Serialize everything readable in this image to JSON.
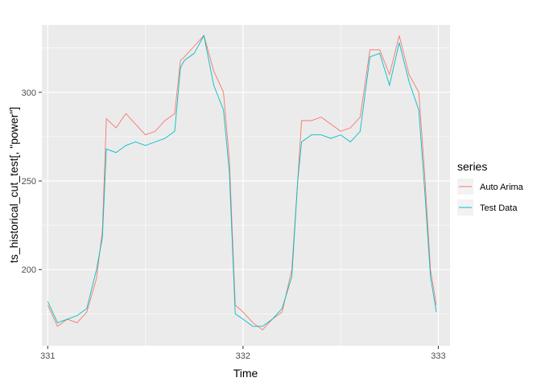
{
  "chart_data": {
    "type": "line",
    "title": "",
    "xlabel": "Time",
    "ylabel": "ts_historical_cut_test[, \"power\"]",
    "xlim": [
      330.97,
      333.06
    ],
    "ylim": [
      157,
      338
    ],
    "x_ticks": [
      331,
      332,
      333
    ],
    "x_tick_labels": [
      "331",
      "332",
      "333"
    ],
    "y_ticks": [
      200,
      250,
      300
    ],
    "y_tick_labels": [
      "200",
      "250",
      "300"
    ],
    "grid": true,
    "legend": {
      "title": "series",
      "position": "right"
    },
    "series": [
      {
        "name": "Auto Arima",
        "color": "#F8766D",
        "x": [
          331.0,
          331.05,
          331.1,
          331.15,
          331.2,
          331.25,
          331.28,
          331.3,
          331.35,
          331.4,
          331.45,
          331.5,
          331.55,
          331.6,
          331.65,
          331.68,
          331.7,
          331.75,
          331.8,
          331.85,
          331.9,
          331.93,
          331.96,
          332.0,
          332.05,
          332.1,
          332.15,
          332.2,
          332.25,
          332.28,
          332.3,
          332.35,
          332.4,
          332.45,
          332.5,
          332.55,
          332.6,
          332.65,
          332.7,
          332.75,
          332.8,
          332.85,
          332.9,
          332.93,
          332.96,
          332.99
        ],
        "values": [
          180,
          168,
          172,
          170,
          176,
          195,
          222,
          285,
          280,
          288,
          282,
          276,
          278,
          284,
          288,
          318,
          320,
          326,
          332,
          312,
          300,
          262,
          180,
          176,
          170,
          166,
          172,
          176,
          200,
          250,
          284,
          284,
          286,
          282,
          278,
          280,
          286,
          324,
          324,
          310,
          332,
          310,
          300,
          254,
          200,
          180
        ]
      },
      {
        "name": "Test Data",
        "color": "#00BFC4",
        "x": [
          331.0,
          331.05,
          331.1,
          331.15,
          331.2,
          331.25,
          331.28,
          331.3,
          331.35,
          331.4,
          331.45,
          331.5,
          331.55,
          331.6,
          331.65,
          331.68,
          331.7,
          331.75,
          331.8,
          331.85,
          331.9,
          331.93,
          331.96,
          332.0,
          332.05,
          332.1,
          332.15,
          332.2,
          332.25,
          332.28,
          332.3,
          332.35,
          332.4,
          332.45,
          332.5,
          332.55,
          332.6,
          332.65,
          332.7,
          332.75,
          332.8,
          332.85,
          332.9,
          332.93,
          332.96,
          332.99
        ],
        "values": [
          182,
          170,
          172,
          174,
          178,
          200,
          218,
          268,
          266,
          270,
          272,
          270,
          272,
          274,
          278,
          314,
          318,
          322,
          332,
          304,
          290,
          255,
          175,
          172,
          168,
          168,
          172,
          178,
          196,
          250,
          272,
          276,
          276,
          274,
          276,
          272,
          278,
          320,
          322,
          304,
          328,
          306,
          290,
          245,
          196,
          176
        ]
      }
    ]
  }
}
